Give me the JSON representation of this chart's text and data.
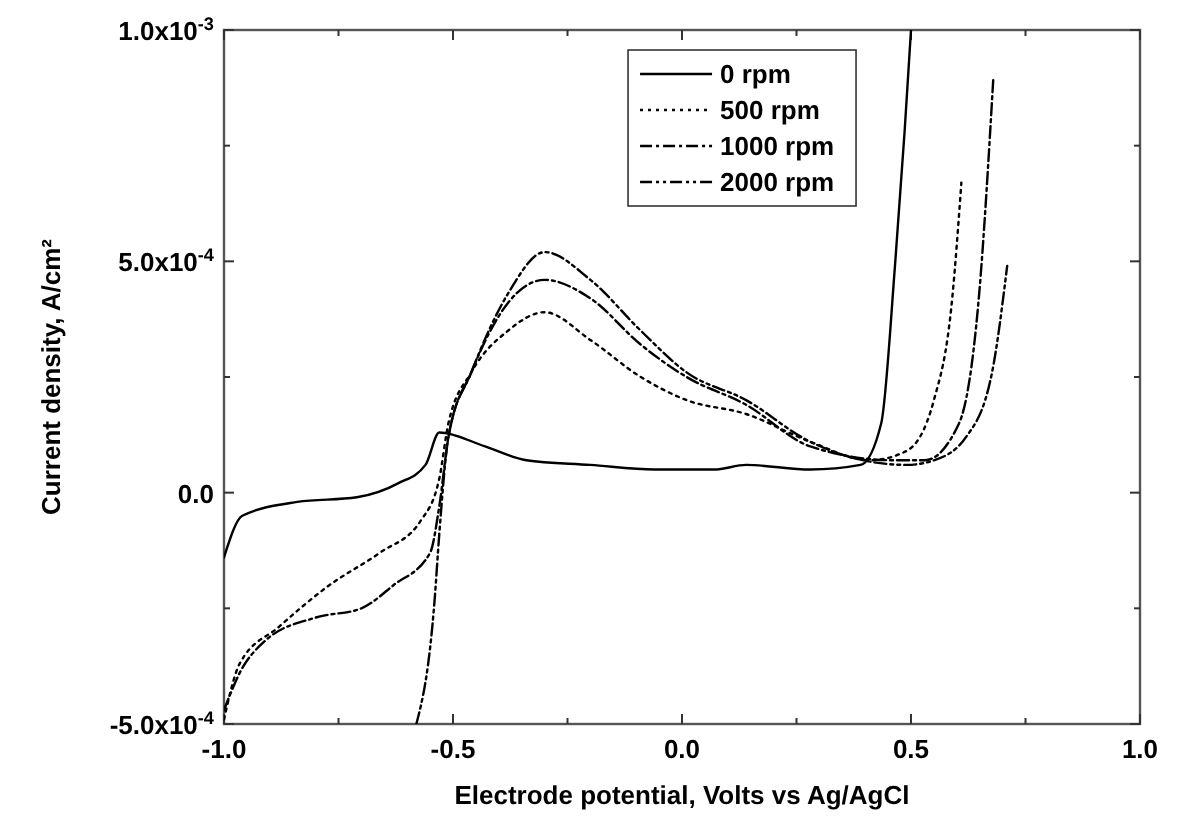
{
  "chart_data": {
    "type": "line",
    "xlabel": "Electrode potential, Volts vs Ag/AgCl",
    "ylabel": "Current density, A/cm²",
    "xlim": [
      -1.0,
      1.0
    ],
    "ylim": [
      -0.0005,
      0.001
    ],
    "xticks": [
      {
        "value": -1.0,
        "label": "-1.0"
      },
      {
        "value": -0.75,
        "label": null
      },
      {
        "value": -0.5,
        "label": "-0.5"
      },
      {
        "value": -0.25,
        "label": null
      },
      {
        "value": 0.0,
        "label": "0.0"
      },
      {
        "value": 0.25,
        "label": null
      },
      {
        "value": 0.5,
        "label": "0.5"
      },
      {
        "value": 0.75,
        "label": null
      },
      {
        "value": 1.0,
        "label": "1.0"
      }
    ],
    "yticks": [
      {
        "value": -0.0005,
        "label": "-5.0x10$^{-4}$"
      },
      {
        "value": -0.00025,
        "label": null
      },
      {
        "value": 0,
        "label": "0.0"
      },
      {
        "value": 0.00025,
        "label": null
      },
      {
        "value": 0.0005,
        "label": "5.0x10$^{-4}$"
      },
      {
        "value": 0.00075,
        "label": null
      },
      {
        "value": 0.001,
        "label": "1.0x10$^{-3}$"
      }
    ],
    "grid": false,
    "legend": "top right",
    "series": [
      {
        "name": "0 rpm",
        "color": "#000000",
        "line_style": "solid",
        "x": [
          -1.0,
          -0.96,
          -0.84,
          -0.71,
          -0.62,
          -0.56,
          -0.53,
          -0.43,
          -0.34,
          -0.2,
          -0.06,
          0.07,
          0.14,
          0.28,
          0.39,
          0.435,
          0.465,
          0.486,
          0.5
        ],
        "values": [
          -0.00014,
          -5e-05,
          -2e-05,
          -1e-05,
          2e-05,
          6e-05,
          0.00013,
          0.0001,
          7e-05,
          6e-05,
          5e-05,
          5e-05,
          6e-05,
          5e-05,
          6e-05,
          0.00015,
          0.00049,
          0.00078,
          0.001
        ]
      },
      {
        "name": "500 rpm",
        "color": "#000000",
        "line_style": "dotted",
        "x": [
          -1.0,
          -0.966,
          -0.88,
          -0.77,
          -0.66,
          -0.57,
          -0.53,
          -0.51,
          -0.46,
          -0.38,
          -0.3,
          -0.2,
          -0.09,
          0.01,
          0.14,
          0.28,
          0.41,
          0.49,
          0.55,
          0.59,
          0.61
        ],
        "values": [
          -0.00049,
          -0.00037,
          -0.00029,
          -0.0002,
          -0.00013,
          -6e-05,
          3e-05,
          0.00015,
          0.00026,
          0.00035,
          0.00039,
          0.00033,
          0.00025,
          0.0002,
          0.00017,
          0.00011,
          7e-05,
          9e-05,
          0.0002,
          0.00042,
          0.00067
        ]
      },
      {
        "name": "1000 rpm",
        "color": "#000000",
        "line_style": "dashdot",
        "x": [
          -1.0,
          -0.966,
          -0.91,
          -0.8,
          -0.7,
          -0.63,
          -0.55,
          -0.53,
          -0.51,
          -0.46,
          -0.38,
          -0.3,
          -0.2,
          -0.09,
          0.01,
          0.14,
          0.28,
          0.465,
          0.53,
          0.605,
          0.648,
          0.68
        ],
        "values": [
          -0.00047,
          -0.00039,
          -0.00032,
          -0.00027,
          -0.00025,
          -0.0002,
          -0.00013,
          -3e-05,
          0.00012,
          0.00026,
          0.00041,
          0.00046,
          0.00042,
          0.00032,
          0.00025,
          0.00019,
          0.0001,
          7e-05,
          7e-05,
          0.00015,
          0.00042,
          0.0009
        ]
      },
      {
        "name": "2000 rpm",
        "color": "#000000",
        "line_style": "dashdotdot",
        "x": [
          -0.58,
          -0.54,
          -0.53,
          -0.51,
          -0.46,
          -0.38,
          -0.3,
          -0.2,
          -0.09,
          0.01,
          0.14,
          0.28,
          0.49,
          0.55,
          0.62,
          0.677,
          0.71
        ],
        "values": [
          -0.0005,
          -0.00023,
          -9e-05,
          0.00012,
          0.00026,
          0.00043,
          0.00052,
          0.00046,
          0.00035,
          0.00026,
          0.0002,
          0.00011,
          6e-05,
          7e-05,
          0.00012,
          0.00026,
          0.00049
        ]
      }
    ]
  }
}
